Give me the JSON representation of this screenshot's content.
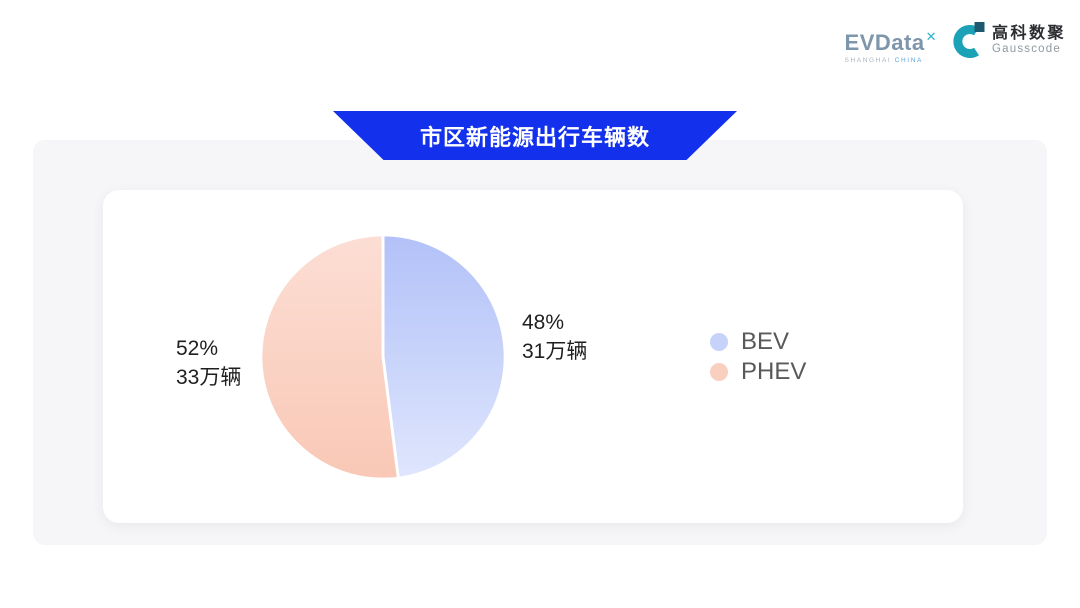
{
  "header": {
    "evdata_logo": {
      "wordmark": "EVData",
      "mark": "✕",
      "tagline_left": "SHANGHAI",
      "tagline_right": "CHINA"
    },
    "gausscode_logo": {
      "name_cn": "高科数聚",
      "name_en": "Gausscode"
    }
  },
  "chart_data": {
    "type": "pie",
    "title": "市区新能源出行车辆数",
    "legend_position": "right",
    "start_angle_deg": 0,
    "direction": "clockwise",
    "unit": "万辆",
    "series": [
      {
        "name": "BEV",
        "value": 31,
        "percent": 48,
        "percent_label": "48%",
        "value_label": "31万辆",
        "label_side": "right",
        "gradient": [
          "#b2c1f8",
          "#dfe6fd"
        ],
        "legend_dot": "#c6d2fa"
      },
      {
        "name": "PHEV",
        "value": 33,
        "percent": 52,
        "percent_label": "52%",
        "value_label": "33万辆",
        "label_side": "left",
        "gradient": [
          "#fcded4",
          "#f9c8b6"
        ],
        "legend_dot": "#f9cfc0"
      }
    ],
    "colors": {
      "banner_blue": "#1331ec",
      "label_text": "#1f1f1f",
      "legend_text": "#58595b",
      "panel_bg": "#f6f6f8",
      "card_bg": "#ffffff"
    }
  }
}
